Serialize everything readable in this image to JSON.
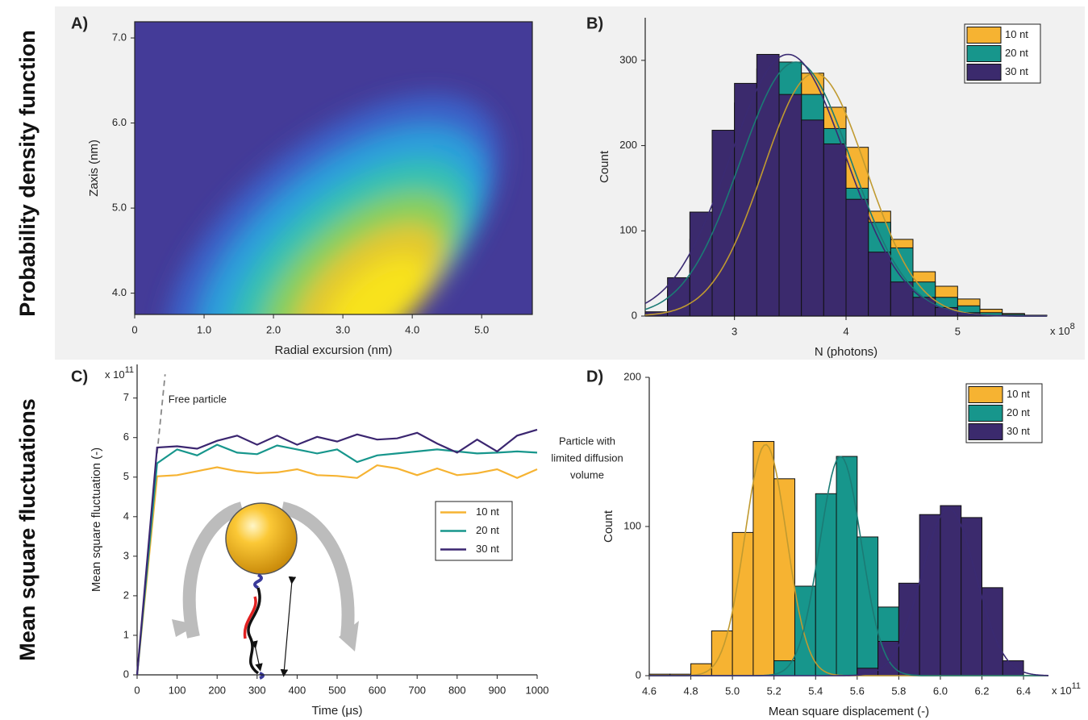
{
  "row_labels": [
    "Probability density function",
    "Mean square fluctuations"
  ],
  "chart_data": [
    {
      "type": "heatmap",
      "label": "A)",
      "x_label": "Radial excursion (nm)",
      "y_label": "Zaxis (nm)",
      "xlim": [
        0,
        5.73
      ],
      "ylim": [
        3.75,
        7.19
      ],
      "xticks": [
        0,
        {
          "value": 1,
          "label": "1.0"
        },
        {
          "value": 2,
          "label": "2.0"
        },
        {
          "value": 3,
          "label": "3.0"
        },
        {
          "value": 4,
          "label": "4.0"
        },
        {
          "value": 5,
          "label": "5.0"
        }
      ],
      "yticks": [
        {
          "value": 4,
          "label": "4.0"
        },
        {
          "value": 5,
          "label": "5.0"
        },
        {
          "value": 6,
          "label": "6.0"
        },
        {
          "value": 7,
          "label": "7.0"
        }
      ],
      "peak": {
        "x": 3.5,
        "y": 3.9
      },
      "colormap": [
        "#443b98",
        "#3b62c9",
        "#2c9fdc",
        "#35c1b0",
        "#86cf5c",
        "#e3c82e",
        "#f8e21a"
      ]
    },
    {
      "type": "histogram",
      "label": "B)",
      "x_label": "N (photons)",
      "y_label": "Count",
      "x_multiplier": {
        "base": "x 10",
        "exponent": "8"
      },
      "xlim": [
        2.2,
        5.8
      ],
      "ylim": [
        0,
        350
      ],
      "xticks": [
        3,
        4,
        5
      ],
      "yticks": [
        0,
        100,
        200,
        300
      ],
      "bins": [
        2.2,
        2.4,
        2.6,
        2.8,
        3.0,
        3.2,
        3.4,
        3.6,
        3.8,
        4.0,
        4.2,
        4.4,
        4.6,
        4.8,
        5.0,
        5.2,
        5.4,
        5.6,
        5.8
      ],
      "series": [
        {
          "name": "10 nt",
          "color": "#f6b332",
          "line_color": "#c09a30",
          "values": [
            2,
            18,
            60,
            120,
            190,
            245,
            280,
            285,
            245,
            198,
            123,
            90,
            52,
            35,
            20,
            8,
            3,
            1
          ],
          "fit": {
            "mean": 3.72,
            "sd": 0.46,
            "peak": 285
          }
        },
        {
          "name": "20 nt",
          "color": "#17968c",
          "line_color": "#1b7b75",
          "values": [
            3,
            30,
            90,
            172,
            250,
            290,
            298,
            260,
            220,
            150,
            110,
            80,
            40,
            22,
            12,
            4,
            2,
            0
          ],
          "fit": {
            "mean": 3.55,
            "sd": 0.5,
            "peak": 298
          }
        },
        {
          "name": "30 nt",
          "color": "#3b2a6d",
          "line_color": "#3a2a72",
          "values": [
            5,
            45,
            122,
            218,
            273,
            307,
            260,
            230,
            202,
            137,
            75,
            40,
            22,
            10,
            4,
            1,
            0,
            0
          ],
          "fit": {
            "mean": 3.48,
            "sd": 0.52,
            "peak": 307
          }
        }
      ]
    },
    {
      "type": "line",
      "label": "C)",
      "x_label": "Time (μs)",
      "y_label": "Mean square fluctuation (-)",
      "y_multiplier": {
        "base": "x 10",
        "exponent": "11"
      },
      "xlim": [
        0,
        1000
      ],
      "ylim": [
        0,
        7.85
      ],
      "xticks": [
        0,
        100,
        200,
        300,
        400,
        500,
        600,
        700,
        800,
        900,
        1000
      ],
      "yticks": [
        0,
        1,
        2,
        3,
        4,
        5,
        6,
        7
      ],
      "x": [
        0,
        50,
        100,
        150,
        200,
        250,
        300,
        350,
        400,
        450,
        500,
        550,
        600,
        650,
        700,
        750,
        800,
        850,
        900,
        950,
        1000
      ],
      "series": [
        {
          "name": "10 nt",
          "color": "#f6b332",
          "values": [
            0,
            5.02,
            5.05,
            5.15,
            5.25,
            5.15,
            5.1,
            5.12,
            5.2,
            5.05,
            5.03,
            4.98,
            5.3,
            5.22,
            5.05,
            5.22,
            5.05,
            5.1,
            5.2,
            4.98,
            5.2
          ]
        },
        {
          "name": "20 nt",
          "color": "#17968c",
          "values": [
            0,
            5.35,
            5.7,
            5.55,
            5.82,
            5.62,
            5.58,
            5.8,
            5.7,
            5.6,
            5.7,
            5.38,
            5.55,
            5.6,
            5.65,
            5.7,
            5.65,
            5.6,
            5.62,
            5.65,
            5.62
          ]
        },
        {
          "name": "30 nt",
          "color": "#3b2670",
          "values": [
            0,
            5.75,
            5.78,
            5.72,
            5.92,
            6.05,
            5.82,
            6.05,
            5.82,
            6.02,
            5.9,
            6.08,
            5.95,
            5.98,
            6.12,
            5.85,
            5.62,
            5.95,
            5.65,
            6.05,
            6.2
          ]
        }
      ],
      "reference_line": {
        "label": "Free particle",
        "x": [
          50,
          70
        ],
        "y": [
          5.6,
          7.6
        ]
      },
      "annotation": [
        "Particle with",
        "limited diffusion",
        "volume"
      ]
    },
    {
      "type": "histogram",
      "label": "D)",
      "x_label": "Mean square displacement (-)",
      "y_label": "Count",
      "x_multiplier": {
        "base": "x 10",
        "exponent": "11"
      },
      "xlim": [
        4.6,
        6.52
      ],
      "ylim": [
        0,
        200
      ],
      "xticks": [
        4.6,
        4.8,
        {
          "value": 5,
          "label": "5.0"
        },
        5.2,
        5.4,
        5.6,
        5.8,
        {
          "value": 6,
          "label": "6.0"
        },
        6.2,
        6.4
      ],
      "yticks": [
        0,
        100,
        200
      ],
      "bins": [
        4.6,
        4.7,
        4.8,
        4.9,
        5.0,
        5.1,
        5.2,
        5.3,
        5.4,
        5.5,
        5.6,
        5.7,
        5.8,
        5.9,
        6.0,
        6.1,
        6.2,
        6.3,
        6.4,
        6.5
      ],
      "series": [
        {
          "name": "10 nt",
          "color": "#f6b332",
          "line_color": "#c09a30",
          "values": [
            1,
            1,
            8,
            30,
            96,
            157,
            132,
            0,
            0,
            0,
            0,
            0,
            0,
            0,
            0,
            0,
            0,
            0,
            0
          ],
          "fit": {
            "mean": 5.16,
            "sd": 0.1,
            "peak": 155
          }
        },
        {
          "name": "20 nt",
          "color": "#17968c",
          "line_color": "#1b7b75",
          "values": [
            0,
            0,
            0,
            0,
            0,
            0,
            10,
            60,
            122,
            147,
            93,
            46,
            0,
            0,
            0,
            0,
            0,
            0,
            0
          ],
          "fit": {
            "mean": 5.52,
            "sd": 0.1,
            "peak": 147
          }
        },
        {
          "name": "30 nt",
          "color": "#3b2a6d",
          "line_color": "#3a2a72",
          "values": [
            0,
            0,
            0,
            0,
            0,
            0,
            0,
            0,
            0,
            0,
            5,
            23,
            62,
            108,
            114,
            106,
            59,
            10,
            0
          ],
          "fit": {
            "mean": 6.04,
            "sd": 0.13,
            "peak": 112
          }
        }
      ]
    }
  ]
}
